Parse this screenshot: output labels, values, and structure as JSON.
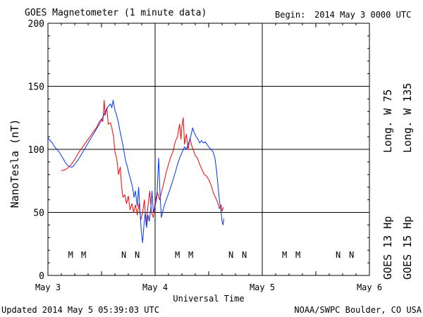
{
  "header": {
    "title": "GOES Magnetometer (1 minute data)",
    "begin_label": "Begin:",
    "begin_value": "2014 May 3 0000 UTC"
  },
  "footer": {
    "updated": "Updated 2014 May  5 05:39:03 UTC",
    "credit": "NOAA/SWPC Boulder, CO USA"
  },
  "colors": {
    "goes13": "#ff0000",
    "goes15": "#0033ff",
    "axis": "#000000",
    "background": "#ffffff"
  },
  "chart_data": {
    "type": "line",
    "xlabel": "Universal Time",
    "ylabel": "NanoTesla (nT)",
    "ylim": [
      0,
      200
    ],
    "y_ticks": [
      0,
      50,
      100,
      150,
      200
    ],
    "y_tick_labels": [
      "0",
      "50",
      "100",
      "150",
      "200"
    ],
    "x_ticks": [
      "May 3",
      "May 4",
      "May 5",
      "May 6"
    ],
    "x_unit": "hours since 2014 May 3 0000 UTC",
    "xlim": [
      0,
      72
    ],
    "grid": true,
    "legend_position": "right (vertical text)",
    "series": [
      {
        "name": "GOES 13 Hp",
        "longitude": "Long. W 75",
        "color": "#ff0000",
        "points": [
          [
            3.0,
            83
          ],
          [
            4.0,
            84
          ],
          [
            5.0,
            87
          ],
          [
            6.0,
            92
          ],
          [
            7.0,
            98
          ],
          [
            8.0,
            103
          ],
          [
            9.0,
            108
          ],
          [
            10.0,
            113
          ],
          [
            11.0,
            118
          ],
          [
            11.5,
            122
          ],
          [
            12.0,
            124
          ],
          [
            12.3,
            122
          ],
          [
            12.6,
            139
          ],
          [
            12.8,
            127
          ],
          [
            13.2,
            133
          ],
          [
            13.5,
            120
          ],
          [
            14.0,
            121
          ],
          [
            14.3,
            117
          ],
          [
            14.7,
            110
          ],
          [
            15.0,
            98
          ],
          [
            15.4,
            93
          ],
          [
            15.8,
            80
          ],
          [
            16.2,
            86
          ],
          [
            16.5,
            70
          ],
          [
            16.8,
            62
          ],
          [
            17.2,
            64
          ],
          [
            17.6,
            57
          ],
          [
            18.0,
            63
          ],
          [
            18.4,
            52
          ],
          [
            18.8,
            57
          ],
          [
            19.2,
            50
          ],
          [
            19.6,
            56
          ],
          [
            20.0,
            48
          ],
          [
            20.4,
            57
          ],
          [
            20.8,
            44
          ],
          [
            21.2,
            50
          ],
          [
            21.6,
            60
          ],
          [
            22.0,
            40
          ],
          [
            22.4,
            55
          ],
          [
            22.8,
            67
          ],
          [
            23.2,
            50
          ],
          [
            23.6,
            46
          ],
          [
            24.0,
            58
          ],
          [
            24.5,
            66
          ],
          [
            25.0,
            60
          ],
          [
            25.5,
            67
          ],
          [
            26.0,
            74
          ],
          [
            26.5,
            82
          ],
          [
            27.0,
            88
          ],
          [
            27.5,
            94
          ],
          [
            28.0,
            98
          ],
          [
            28.5,
            106
          ],
          [
            29.0,
            110
          ],
          [
            29.5,
            120
          ],
          [
            29.8,
            108
          ],
          [
            30.0,
            118
          ],
          [
            30.3,
            125
          ],
          [
            30.6,
            104
          ],
          [
            31.0,
            112
          ],
          [
            31.4,
            100
          ],
          [
            31.8,
            109
          ],
          [
            32.2,
            103
          ],
          [
            32.6,
            99
          ],
          [
            33.0,
            95
          ],
          [
            33.5,
            93
          ],
          [
            34.0,
            88
          ],
          [
            34.5,
            84
          ],
          [
            35.0,
            80
          ],
          [
            35.5,
            79
          ],
          [
            36.0,
            76
          ],
          [
            36.5,
            72
          ],
          [
            37.0,
            66
          ],
          [
            37.5,
            62
          ],
          [
            38.0,
            58
          ],
          [
            38.4,
            53
          ],
          [
            38.8,
            56
          ],
          [
            39.0,
            51
          ],
          [
            39.3,
            54
          ]
        ]
      },
      {
        "name": "GOES 15 Hp",
        "longitude": "Long. W 135",
        "color": "#0033ff",
        "points": [
          [
            0.0,
            109
          ],
          [
            0.5,
            107
          ],
          [
            1.0,
            105
          ],
          [
            1.5,
            102
          ],
          [
            2.0,
            100
          ],
          [
            2.5,
            98
          ],
          [
            3.0,
            95
          ],
          [
            3.5,
            92
          ],
          [
            4.0,
            89
          ],
          [
            4.5,
            87
          ],
          [
            5.0,
            86
          ],
          [
            5.5,
            86
          ],
          [
            6.0,
            88
          ],
          [
            7.0,
            93
          ],
          [
            8.0,
            99
          ],
          [
            9.0,
            105
          ],
          [
            10.0,
            111
          ],
          [
            11.0,
            117
          ],
          [
            12.0,
            123
          ],
          [
            12.5,
            127
          ],
          [
            13.0,
            131
          ],
          [
            13.5,
            134
          ],
          [
            14.0,
            136
          ],
          [
            14.3,
            133
          ],
          [
            14.6,
            139
          ],
          [
            15.0,
            131
          ],
          [
            15.4,
            127
          ],
          [
            15.8,
            121
          ],
          [
            16.0,
            117
          ],
          [
            16.4,
            110
          ],
          [
            16.8,
            103
          ],
          [
            17.1,
            97
          ],
          [
            17.4,
            91
          ],
          [
            17.8,
            86
          ],
          [
            18.2,
            80
          ],
          [
            18.6,
            75
          ],
          [
            19.0,
            69
          ],
          [
            19.3,
            62
          ],
          [
            19.6,
            67
          ],
          [
            20.0,
            55
          ],
          [
            20.3,
            70
          ],
          [
            20.6,
            52
          ],
          [
            20.9,
            35
          ],
          [
            21.2,
            26
          ],
          [
            21.5,
            40
          ],
          [
            21.8,
            50
          ],
          [
            22.1,
            38
          ],
          [
            22.4,
            48
          ],
          [
            22.7,
            43
          ],
          [
            23.0,
            52
          ],
          [
            23.3,
            67
          ],
          [
            23.6,
            50
          ],
          [
            24.0,
            55
          ],
          [
            24.4,
            62
          ],
          [
            24.8,
            93
          ],
          [
            25.1,
            64
          ],
          [
            25.4,
            46
          ],
          [
            25.8,
            52
          ],
          [
            26.2,
            57
          ],
          [
            26.7,
            62
          ],
          [
            27.2,
            67
          ],
          [
            27.7,
            72
          ],
          [
            28.2,
            78
          ],
          [
            28.7,
            84
          ],
          [
            29.2,
            90
          ],
          [
            29.7,
            95
          ],
          [
            30.2,
            99
          ],
          [
            30.6,
            102
          ],
          [
            31.0,
            100
          ],
          [
            31.4,
            104
          ],
          [
            31.8,
            108
          ],
          [
            32.1,
            112
          ],
          [
            32.4,
            117
          ],
          [
            32.8,
            113
          ],
          [
            33.2,
            110
          ],
          [
            33.6,
            108
          ],
          [
            34.0,
            105
          ],
          [
            34.4,
            107
          ],
          [
            34.8,
            105
          ],
          [
            35.2,
            106
          ],
          [
            35.6,
            104
          ],
          [
            36.0,
            102
          ],
          [
            36.5,
            100
          ],
          [
            37.0,
            98
          ],
          [
            37.4,
            93
          ],
          [
            37.8,
            82
          ],
          [
            38.2,
            67
          ],
          [
            38.5,
            57
          ],
          [
            38.8,
            50
          ],
          [
            39.0,
            43
          ],
          [
            39.2,
            40
          ],
          [
            39.4,
            45
          ]
        ]
      }
    ],
    "markers": {
      "labels": [
        "M",
        "M",
        "N",
        "N",
        "M",
        "M",
        "N",
        "N",
        "M",
        "M",
        "N",
        "N"
      ],
      "series": [
        "GOES 13 Hp",
        "GOES 15 Hp",
        "GOES 13 Hp",
        "GOES 15 Hp",
        "GOES 13 Hp",
        "GOES 15 Hp",
        "GOES 13 Hp",
        "GOES 15 Hp",
        "GOES 13 Hp",
        "GOES 15 Hp",
        "GOES 13 Hp",
        "GOES 15 Hp"
      ],
      "hours": [
        5.1,
        8.0,
        17.0,
        20.0,
        29.0,
        32.0,
        41.0,
        44.0,
        53.0,
        56.0,
        65.0,
        68.0
      ]
    }
  }
}
